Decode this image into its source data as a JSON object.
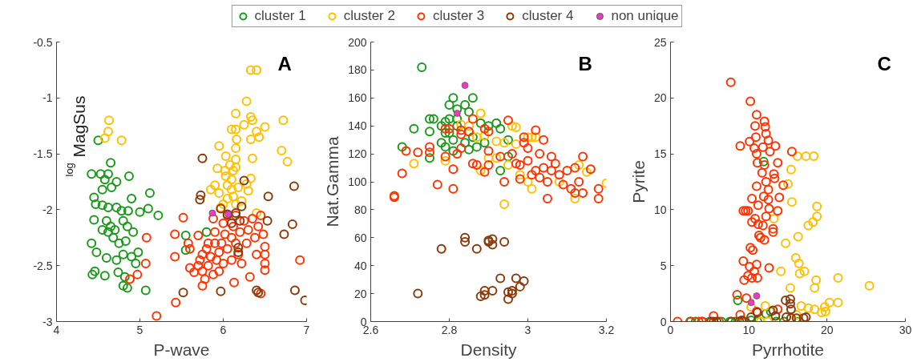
{
  "chart_data": [
    {
      "type": "scatter",
      "xlabel": "P-wave",
      "ylabel": "$^{log}$MagSus",
      "xlim": [
        4,
        7
      ],
      "ylim": [
        -3,
        -0.5
      ],
      "xticks": [
        4,
        5,
        6,
        7
      ],
      "yticks": [
        -3,
        -2.5,
        -2,
        -1.5,
        -1,
        -0.5
      ],
      "grid": false,
      "legend": "top",
      "marker": "circle",
      "annotations": [
        "A"
      ],
      "series": [
        {
          "name": "cluster 1",
          "color": "#1a9a1a",
          "x": [
            4.5,
            4.65,
            4.42,
            4.53,
            4.62,
            4.58,
            4.72,
            4.66,
            4.55,
            4.87,
            4.45,
            4.9,
            5.12,
            4.47,
            4.55,
            4.62,
            4.72,
            4.78,
            4.86,
            5.0,
            5.1,
            5.22,
            4.45,
            4.6,
            4.65,
            4.7,
            4.62,
            4.68,
            4.55,
            4.8,
            4.85,
            4.92,
            4.75,
            4.83,
            4.42,
            4.48,
            4.6,
            4.72,
            4.8,
            4.9,
            4.98,
            4.95,
            4.43,
            4.46,
            4.58,
            4.74,
            4.82,
            4.8,
            4.85,
            5.07,
            5.55,
            5.55,
            5.8
          ],
          "values": [
            -1.38,
            -1.58,
            -1.68,
            -1.68,
            -1.68,
            -1.73,
            -1.75,
            -1.8,
            -1.82,
            -1.7,
            -1.89,
            -1.9,
            -1.85,
            -1.95,
            -1.96,
            -1.98,
            -1.98,
            -2.01,
            -2.01,
            -2.02,
            -1.99,
            -2.05,
            -2.09,
            -2.1,
            -2.15,
            -2.18,
            -2.2,
            -2.25,
            -2.18,
            -2.1,
            -2.15,
            -2.2,
            -2.3,
            -2.28,
            -2.3,
            -2.38,
            -2.43,
            -2.45,
            -2.4,
            -2.42,
            -2.38,
            -2.48,
            -2.58,
            -2.55,
            -2.59,
            -2.56,
            -2.6,
            -2.68,
            -2.7,
            -2.72,
            -2.23,
            -2.36,
            -2.2
          ]
        },
        {
          "name": "cluster 2",
          "color": "#ffc000",
          "x": [
            4.63,
            4.62,
            4.58,
            4.78,
            6.33,
            6.4,
            6.28,
            6.15,
            6.33,
            6.35,
            6.72,
            6.1,
            6.15,
            6.25,
            6.4,
            6.5,
            6.43,
            6.33,
            6.16,
            5.95,
            6.15,
            6.03,
            6.15,
            6.35,
            6.7,
            6.77,
            6.08,
            6.15,
            5.93,
            6.02,
            6.12,
            6.03,
            6.1,
            6.33,
            5.9,
            6.05,
            6.18,
            5.85,
            5.95,
            6.1,
            6.28,
            6.3,
            6.05,
            6.12,
            6.22,
            6.0,
            6.15,
            5.97,
            6.4
          ],
          "values": [
            -1.2,
            -1.3,
            -1.36,
            -1.38,
            -0.75,
            -0.75,
            -1.03,
            -1.14,
            -1.17,
            -1.2,
            -1.2,
            -1.28,
            -1.28,
            -1.24,
            -1.3,
            -1.26,
            -1.35,
            -1.37,
            -1.37,
            -1.43,
            -1.45,
            -1.52,
            -1.55,
            -1.54,
            -1.47,
            -1.57,
            -1.6,
            -1.62,
            -1.63,
            -1.65,
            -1.65,
            -1.7,
            -1.73,
            -1.72,
            -1.78,
            -1.78,
            -1.8,
            -1.82,
            -1.85,
            -1.82,
            -1.77,
            -1.83,
            -1.9,
            -1.88,
            -1.92,
            -1.95,
            -1.95,
            -1.98,
            -2.03
          ]
        },
        {
          "name": "cluster 3",
          "color": "#ff3300",
          "x": [
            5.52,
            5.42,
            5.42,
            5.2,
            5.43,
            4.88,
            4.97,
            5.07,
            5.08,
            5.58,
            5.6,
            5.6,
            5.65,
            5.7,
            5.72,
            5.75,
            5.75,
            5.78,
            5.75,
            5.8,
            5.82,
            5.82,
            5.85,
            5.88,
            5.9,
            5.9,
            5.92,
            5.95,
            5.95,
            5.98,
            6.0,
            6.0,
            6.02,
            6.05,
            6.05,
            6.1,
            6.1,
            6.12,
            6.15,
            6.15,
            6.18,
            6.2,
            6.22,
            6.25,
            6.28,
            6.3,
            6.32,
            6.35,
            6.38,
            6.4,
            6.42,
            6.45,
            6.48,
            6.5,
            6.5,
            6.5,
            6.5,
            6.45,
            6.13,
            5.88,
            6.92,
            5.7
          ],
          "values": [
            -2.07,
            -2.22,
            -2.42,
            -2.95,
            -2.83,
            -2.62,
            -2.58,
            -2.48,
            -2.25,
            -2.3,
            -2.35,
            -2.52,
            -2.56,
            -2.5,
            -2.45,
            -2.4,
            -2.55,
            -2.62,
            -2.68,
            -2.35,
            -2.3,
            -2.5,
            -2.42,
            -2.58,
            -2.3,
            -2.2,
            -2.45,
            -2.38,
            -2.55,
            -2.3,
            -2.12,
            -2.48,
            -2.22,
            -2.35,
            -2.05,
            -2.25,
            -2.45,
            -2.15,
            -2.3,
            -2.05,
            -2.4,
            -2.2,
            -2.48,
            -2.1,
            -2.3,
            -2.18,
            -2.6,
            -2.08,
            -2.25,
            -2.4,
            -2.15,
            -2.05,
            -2.22,
            -2.33,
            -2.4,
            -2.48,
            -2.54,
            -2.75,
            -2.65,
            -2.08,
            -2.45,
            -2.23
          ]
        },
        {
          "name": "cluster 4",
          "color": "#8b3a0a",
          "x": [
            5.75,
            5.73,
            5.72,
            6.25,
            6.85,
            6.54,
            5.97,
            6.05,
            6.15,
            6.22,
            6.53,
            6.1,
            6.2,
            6.18,
            6.18,
            6.83,
            6.73,
            5.97,
            5.52,
            6.4,
            6.42,
            6.86,
            6.98
          ],
          "values": [
            -1.54,
            -1.87,
            -1.91,
            -1.74,
            -1.79,
            -1.88,
            -1.99,
            -2.04,
            -2.03,
            -1.97,
            -2.1,
            -2.12,
            -2.1,
            -2.38,
            -2.34,
            -2.13,
            -2.22,
            -2.73,
            -2.74,
            -2.72,
            -2.74,
            -2.72,
            -2.81
          ]
        },
        {
          "name": "non unique",
          "color": "#e83fbf",
          "x": [
            5.87,
            6.06
          ],
          "values": [
            -2.03,
            -2.04
          ]
        }
      ]
    },
    {
      "type": "scatter",
      "xlabel": "Density",
      "ylabel": "Nat.Gamma",
      "xlim": [
        2.6,
        3.2
      ],
      "ylim": [
        0,
        200
      ],
      "xticks": [
        2.6,
        2.8,
        3,
        3.2
      ],
      "yticks": [
        0,
        20,
        40,
        60,
        80,
        100,
        120,
        140,
        160,
        180,
        200
      ],
      "grid": false,
      "marker": "circle",
      "annotations": [
        "B"
      ],
      "series": [
        {
          "color": "#1a9a1a",
          "x": [
            2.73,
            2.81,
            2.86,
            2.8,
            2.84,
            2.82,
            2.85,
            2.75,
            2.76,
            2.79,
            2.71,
            2.75,
            2.68,
            2.75,
            2.78,
            2.8,
            2.82,
            2.8,
            2.78,
            2.79,
            2.81,
            2.84,
            2.86,
            2.87,
            2.88,
            2.9,
            2.92,
            2.93,
            2.89,
            2.81,
            2.85,
            2.95,
            2.95,
            2.93,
            2.82,
            2.79
          ],
          "values": [
            182,
            160,
            160,
            155,
            155,
            152,
            150,
            145,
            145,
            143,
            138,
            136,
            125,
            117,
            140,
            145,
            140,
            135,
            128,
            125,
            130,
            128,
            132,
            125,
            142,
            140,
            142,
            138,
            128,
            122,
            123,
            130,
            118,
            108,
            145,
            135
          ]
        },
        {
          "color": "#ffc000",
          "x": [
            2.88,
            2.71,
            2.83,
            2.85,
            2.87,
            2.89,
            2.92,
            2.94,
            2.96,
            2.97,
            2.97,
            2.9,
            2.92,
            2.79,
            2.88,
            2.94,
            3.0,
            3.01,
            3.02,
            2.98,
            3.0,
            3.01,
            3.08,
            3.12,
            3.13,
            3.2,
            3.15,
            2.95
          ],
          "values": [
            149,
            113,
            141,
            140,
            132,
            133,
            129,
            128,
            140,
            139,
            127,
            117,
            117,
            115,
            108,
            84,
            132,
            132,
            132,
            105,
            100,
            95,
            100,
            88,
            112,
            99,
            107,
            112
          ]
        },
        {
          "color": "#ff3300",
          "x": [
            2.66,
            2.66,
            2.68,
            2.69,
            2.72,
            2.75,
            2.75,
            2.77,
            2.79,
            2.8,
            2.79,
            2.81,
            2.81,
            2.82,
            2.83,
            2.83,
            2.83,
            2.85,
            2.86,
            2.86,
            2.87,
            2.89,
            2.89,
            2.9,
            2.9,
            2.9,
            2.93,
            2.94,
            2.95,
            2.96,
            2.97,
            2.98,
            2.99,
            2.99,
            3.0,
            3.0,
            3.01,
            3.02,
            3.02,
            3.03,
            3.04,
            3.04,
            3.05,
            3.05,
            3.06,
            3.06,
            3.07,
            3.08,
            3.09,
            3.1,
            3.11,
            3.12,
            3.12,
            3.13,
            3.14,
            3.14,
            3.16,
            3.18,
            3.18,
            3.03,
            2.98
          ],
          "values": [
            90,
            89,
            106,
            122,
            121,
            121,
            125,
            98,
            138,
            138,
            118,
            95,
            109,
            120,
            137,
            134,
            124,
            136,
            145,
            113,
            112,
            107,
            138,
            136,
            122,
            112,
            118,
            100,
            144,
            120,
            113,
            112,
            128,
            132,
            124,
            115,
            105,
            137,
            108,
            120,
            110,
            130,
            100,
            88,
            118,
            108,
            113,
            105,
            98,
            108,
            95,
            110,
            92,
            100,
            92,
            118,
            109,
            95,
            88,
            103,
            102
          ]
        },
        {
          "color": "#8b3a0a",
          "x": [
            2.72,
            2.78,
            2.84,
            2.84,
            2.87,
            2.9,
            2.9,
            2.91,
            2.91,
            2.94,
            2.88,
            2.89,
            2.89,
            2.91,
            2.93,
            2.95,
            2.95,
            2.96,
            2.96,
            2.97,
            2.98,
            2.99
          ],
          "values": [
            20,
            52,
            60,
            57,
            52,
            58,
            57,
            59,
            55,
            57,
            18,
            22,
            19,
            22,
            31,
            16,
            21,
            22,
            20,
            31,
            25,
            29
          ]
        },
        {
          "color": "#e83fbf",
          "x": [
            2.84,
            2.82
          ],
          "values": [
            169,
            149
          ]
        }
      ]
    },
    {
      "type": "scatter",
      "xlabel": "Pyrrhotite",
      "ylabel": "Pyrite",
      "xlim": [
        0,
        30
      ],
      "ylim": [
        0,
        25
      ],
      "xticks": [
        0,
        10,
        20,
        30
      ],
      "yticks": [
        0,
        5,
        10,
        15,
        20,
        25
      ],
      "grid": false,
      "marker": "circle",
      "annotations": [
        "C"
      ],
      "series": [
        {
          "color": "#1a9a1a",
          "x": [
            8.6,
            2.5,
            3.2,
            4,
            5,
            6.5,
            7.6,
            8.3,
            9.5,
            10.3,
            11.1,
            13.5,
            14.5,
            16.4,
            11.9,
            12.2,
            12.8
          ],
          "values": [
            1.9,
            0,
            0,
            0,
            0,
            0,
            0,
            0,
            0,
            0.1,
            0,
            0,
            0,
            0,
            14.3,
            0.7,
            0.9
          ]
        },
        {
          "color": "#ffc000",
          "x": [
            16.2,
            17.3,
            18.3,
            15.4,
            15,
            15.5,
            18.7,
            18.7,
            17.6,
            18.2,
            16.3,
            14.7,
            16,
            16.4,
            14.1,
            17.1,
            16.5,
            18.6,
            21.4,
            25.4,
            15.3,
            18.4,
            21.4,
            20.3,
            19.7,
            16.7,
            17.6,
            18.4,
            19.3,
            19.8,
            12.1,
            10.3,
            11.5,
            12.4,
            16.1,
            13.2
          ],
          "values": [
            14.8,
            14.8,
            14.8,
            13.6,
            12.3,
            10.7,
            10.3,
            9.4,
            8.6,
            8.9,
            7.6,
            7,
            5.7,
            5.2,
            4.5,
            4.5,
            4.3,
            3.7,
            3.9,
            3.2,
            3,
            3,
            1.7,
            1.7,
            1.3,
            1.4,
            1.2,
            1.1,
            0.8,
            0.9,
            1.4,
            1.3,
            0,
            0,
            0.6,
            9.2
          ]
        },
        {
          "color": "#ff3300",
          "x": [
            7.7,
            10.2,
            11,
            12,
            12.1,
            10.8,
            12.2,
            10.9,
            12.5,
            10.1,
            8.9,
            10.7,
            11.8,
            13.4,
            15.5,
            11,
            12.7,
            11.1,
            13.7,
            12,
            11.7,
            13.2,
            13.3,
            12.2,
            14.4,
            11,
            12.5,
            11.9,
            13.9,
            10.4,
            12.5,
            11.2,
            12.6,
            13.7,
            9.3,
            9.6,
            9.9,
            10.8,
            12.2,
            10.4,
            11.2,
            11.8,
            13.1,
            13.1,
            11.3,
            11.5,
            12,
            10.2,
            10.5,
            9.3,
            10.1,
            11,
            12.6,
            10.7,
            9.9,
            10.4,
            11.1,
            9.4,
            8.5,
            9.7,
            0.9,
            2.6,
            3.6,
            4.1,
            5.5,
            8.9,
            11,
            13.7,
            6.2,
            9.1
          ],
          "values": [
            21.4,
            19.7,
            18.5,
            17.9,
            17.4,
            17.5,
            16.8,
            16.5,
            16.2,
            16.1,
            15.7,
            15.5,
            15.6,
            15.7,
            15.2,
            15,
            15.2,
            14.2,
            14.2,
            14,
            13.3,
            13.2,
            12.8,
            12.5,
            12.2,
            12.1,
            11.8,
            11.2,
            11.1,
            11,
            10.9,
            10.4,
            10.1,
            9.9,
            9.9,
            9.9,
            9.9,
            9.2,
            9.4,
            8.9,
            8.7,
            8.6,
            8.3,
            8,
            7.7,
            7.5,
            7.3,
            6.6,
            6.4,
            5.4,
            4.9,
            5.1,
            4.8,
            4.5,
            4.1,
            3.9,
            3.9,
            3.7,
            2.4,
            2.1,
            0,
            0,
            0,
            0,
            0.5,
            0.6,
            0.9,
            1.1,
            0,
            0
          ]
        },
        {
          "color": "#8b3a0a",
          "x": [
            5.2,
            5.5,
            5.9,
            7.8,
            8.8,
            9.1,
            10.3,
            11.1,
            13.1,
            13.4,
            14.7,
            15.3,
            15.3,
            15.4,
            14.8,
            15.4,
            16.1,
            17,
            17.3
          ],
          "values": [
            0,
            0,
            0,
            0,
            0,
            0.1,
            0.4,
            0.8,
            1,
            0.5,
            1.9,
            2,
            1.6,
            1.1,
            0.4,
            0.3,
            0.3,
            0.3,
            0.4
          ]
        },
        {
          "color": "#e83fbf",
          "x": [
            10.3,
            11
          ],
          "values": [
            1.7,
            2.3
          ]
        }
      ]
    }
  ]
}
